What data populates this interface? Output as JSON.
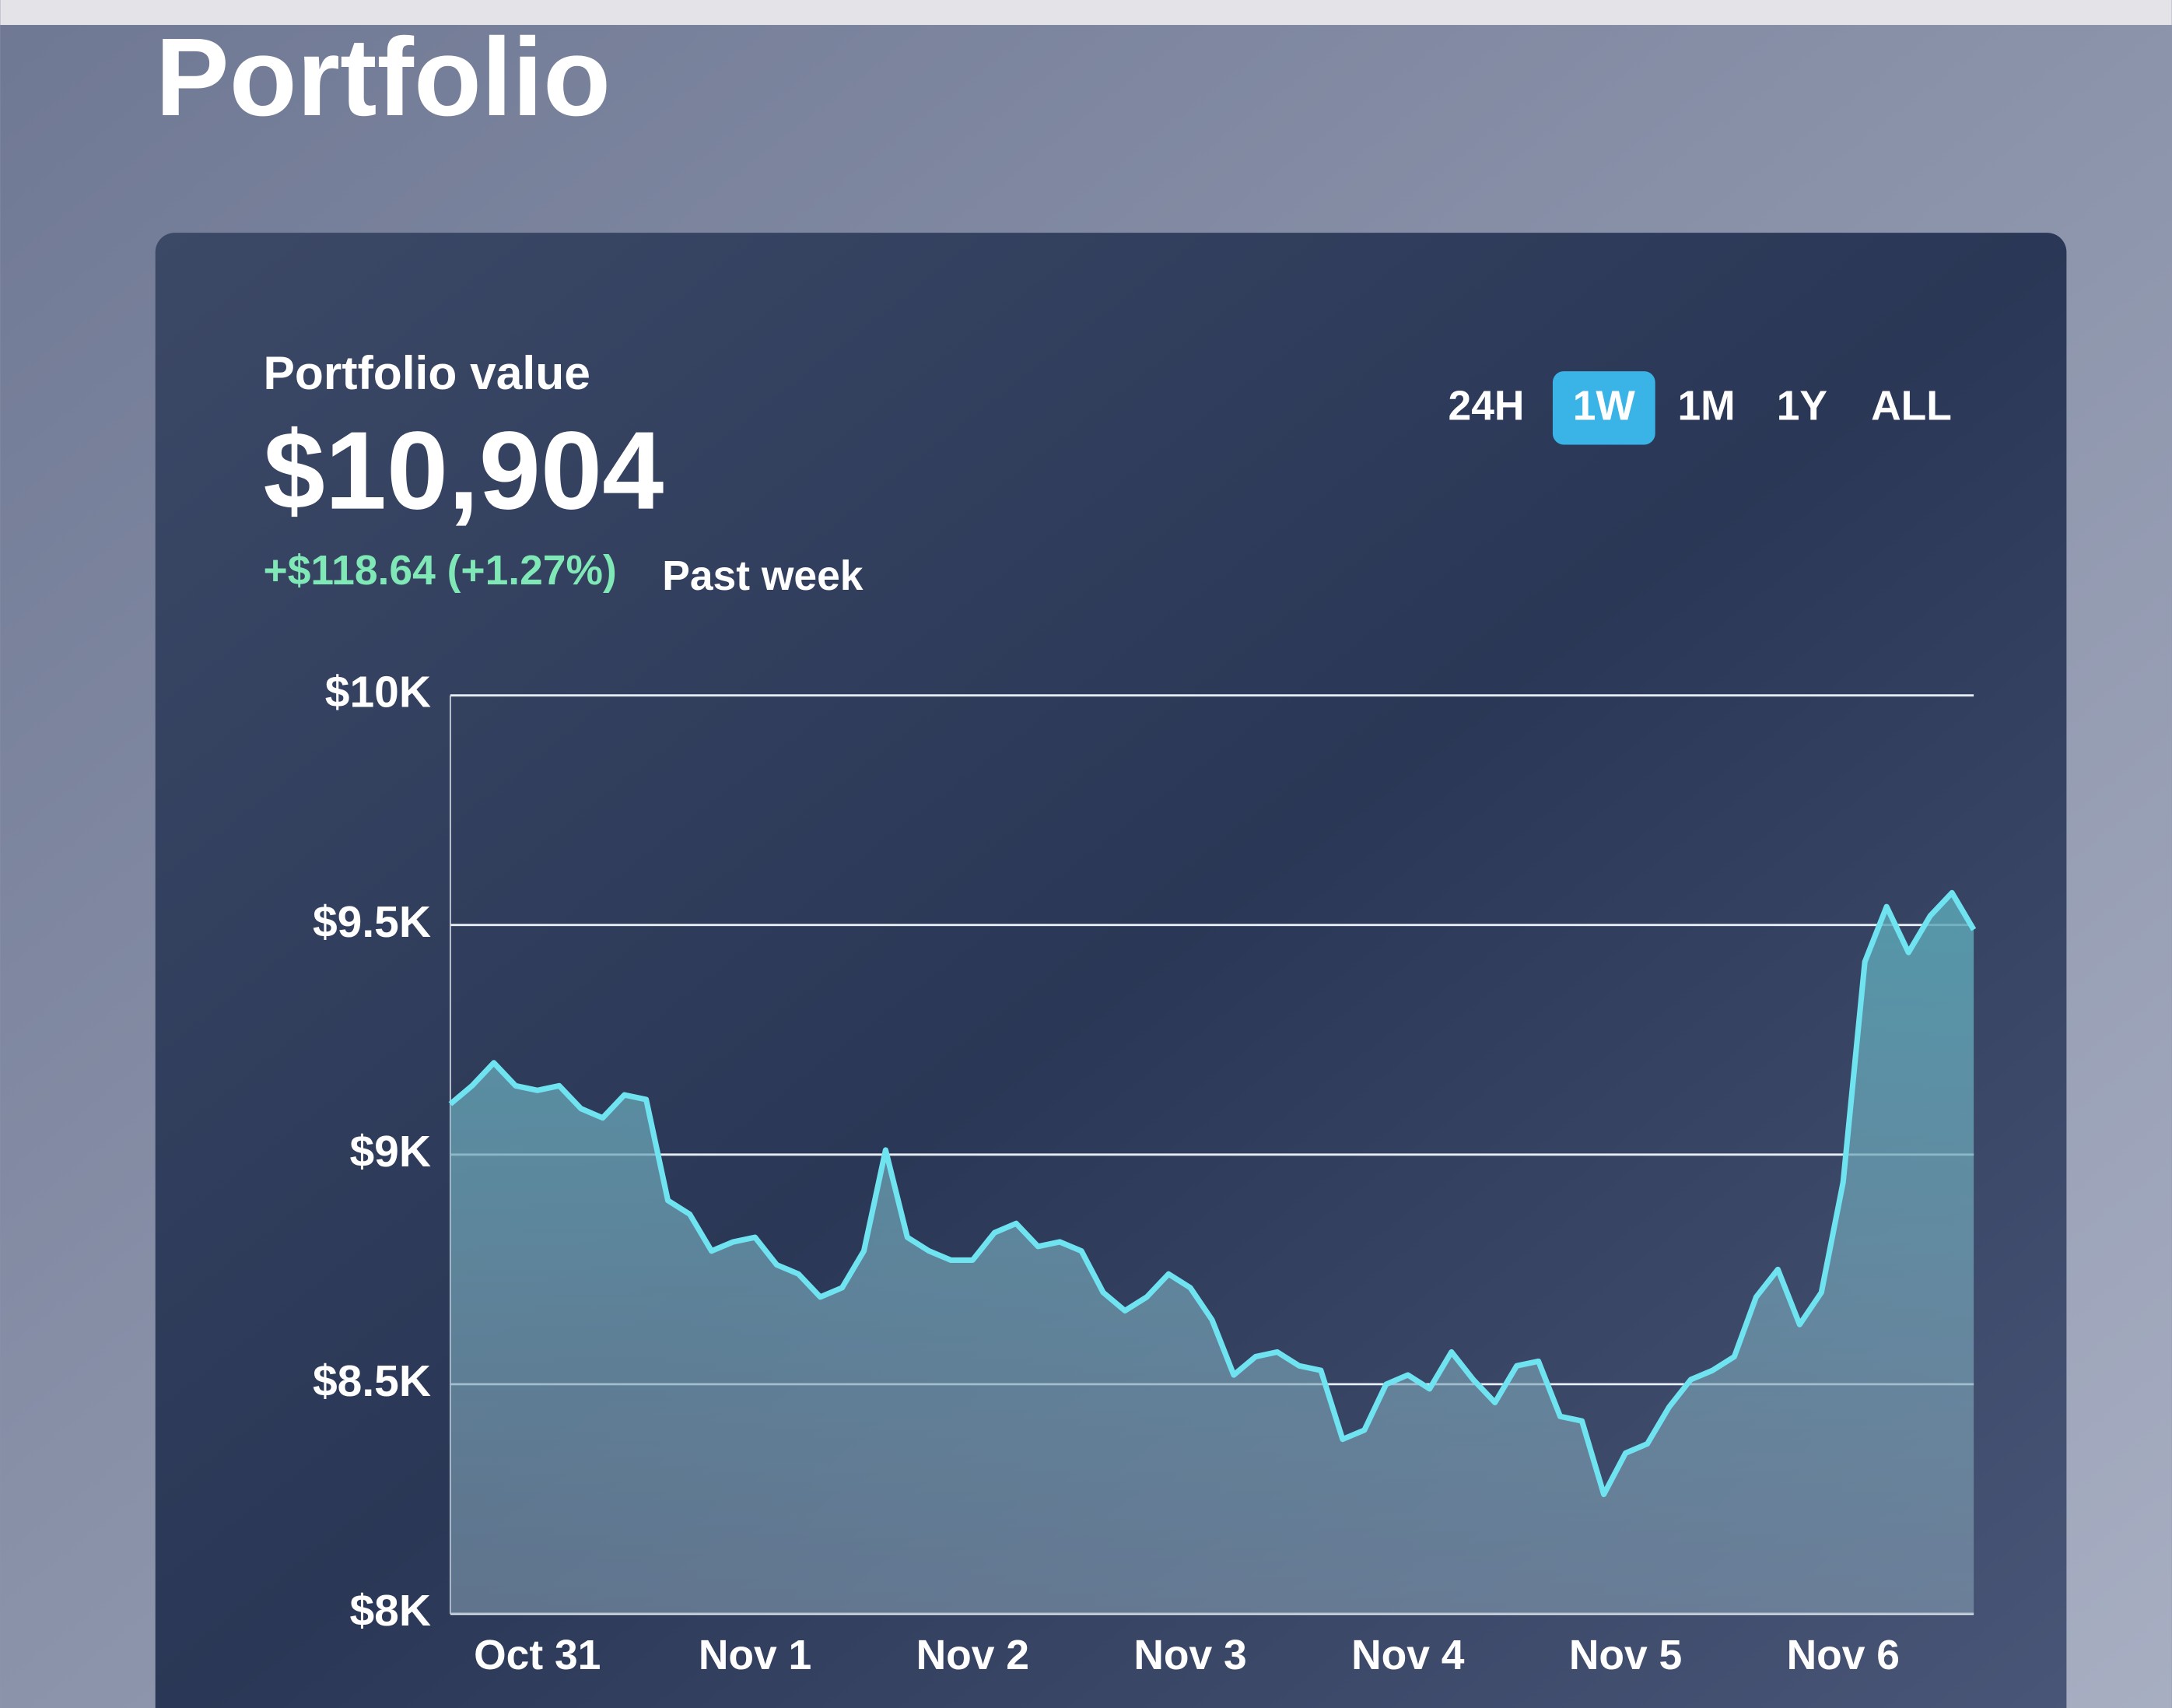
{
  "header": {
    "title": "Portfolio"
  },
  "summary": {
    "label": "Portfolio value",
    "value": "$10,904",
    "change": "+$118.64 (+1.27%)",
    "period": "Past week"
  },
  "ranges": {
    "options": [
      "24H",
      "1W",
      "1M",
      "1Y",
      "ALL"
    ],
    "active": "1W"
  },
  "chart_data": {
    "type": "area",
    "categories": [
      null,
      null,
      null,
      null,
      "Oct 31",
      null,
      null,
      null,
      null,
      null,
      null,
      null,
      null,
      null,
      "Nov 1",
      null,
      null,
      null,
      null,
      null,
      null,
      null,
      null,
      null,
      "Nov 2",
      null,
      null,
      null,
      null,
      null,
      null,
      null,
      null,
      null,
      "Nov 3",
      null,
      null,
      null,
      null,
      null,
      null,
      null,
      null,
      null,
      "Nov 4",
      null,
      null,
      null,
      null,
      null,
      null,
      null,
      null,
      null,
      "Nov 5",
      null,
      null,
      null,
      null,
      null,
      null,
      null,
      null,
      null,
      "Nov 6",
      null,
      null,
      null,
      null,
      null,
      null
    ],
    "values": [
      9110,
      9150,
      9200,
      9150,
      9140,
      9150,
      9100,
      9080,
      9130,
      9120,
      8900,
      8870,
      8790,
      8810,
      8820,
      8760,
      8740,
      8690,
      8710,
      8790,
      9010,
      8820,
      8790,
      8770,
      8770,
      8830,
      8850,
      8800,
      8810,
      8790,
      8700,
      8660,
      8690,
      8740,
      8710,
      8640,
      8520,
      8560,
      8570,
      8540,
      8530,
      8380,
      8400,
      8500,
      8520,
      8490,
      8570,
      8510,
      8460,
      8540,
      8550,
      8430,
      8420,
      8260,
      8350,
      8370,
      8450,
      8510,
      8530,
      8560,
      8690,
      8750,
      8630,
      8700,
      8940,
      9420,
      9540,
      9440,
      9520,
      9570,
      9490
    ],
    "color": "#6fe3f0",
    "ylim": [
      8000,
      10000
    ],
    "yticks": [
      {
        "value": 8000,
        "label": "$8K"
      },
      {
        "value": 8500,
        "label": "$8.5K"
      },
      {
        "value": 9000,
        "label": "$9K"
      },
      {
        "value": 9500,
        "label": "$9.5K"
      },
      {
        "value": 10000,
        "label": "$10K"
      }
    ],
    "grid": true
  }
}
